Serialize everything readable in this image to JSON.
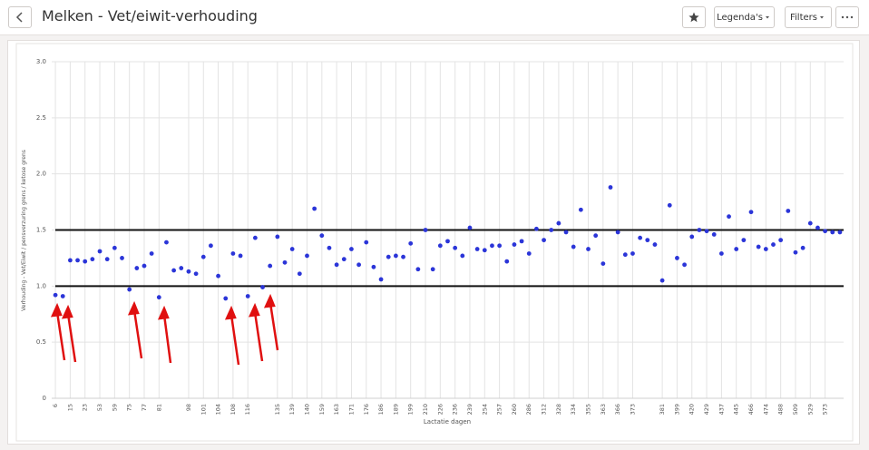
{
  "header": {
    "title": "Melken - Vet/eiwit-verhouding",
    "legend_button": "Legenda's",
    "filter_button": "Filters"
  },
  "chart_data": {
    "type": "scatter",
    "y_label": "Verhouding - Vet/Eiwit / pensverzuring grens / ketose grens",
    "x_label": "Lactatie dagen",
    "categories": [
      "6",
      null,
      "15",
      null,
      "23",
      null,
      "53",
      null,
      "59",
      null,
      "75",
      null,
      "77",
      null,
      "81",
      null,
      null,
      null,
      "98",
      null,
      "101",
      null,
      "104",
      null,
      "108",
      null,
      "116",
      null,
      null,
      null,
      "135",
      null,
      "139",
      null,
      "140",
      null,
      "159",
      null,
      "163",
      null,
      "171",
      null,
      "176",
      null,
      "186",
      null,
      "189",
      null,
      "199",
      null,
      "210",
      null,
      "226",
      null,
      "236",
      null,
      "239",
      null,
      "254",
      null,
      "257",
      null,
      "260",
      null,
      "286",
      null,
      "312",
      null,
      "328",
      null,
      "334",
      null,
      "355",
      null,
      "363",
      null,
      "366",
      null,
      "373",
      null,
      null,
      null,
      "381",
      null,
      "399",
      null,
      "420",
      null,
      "429",
      null,
      "437",
      null,
      "445",
      null,
      "466",
      null,
      "474",
      null,
      "488",
      null,
      "509",
      null,
      "529",
      null,
      "573",
      null,
      null
    ],
    "values": [
      0.92,
      0.91,
      1.23,
      1.23,
      1.22,
      1.24,
      1.31,
      1.24,
      1.34,
      1.25,
      0.97,
      1.16,
      1.18,
      1.29,
      0.9,
      1.39,
      1.14,
      1.16,
      1.13,
      1.11,
      1.26,
      1.36,
      1.09,
      0.89,
      1.29,
      1.27,
      0.91,
      1.43,
      0.99,
      1.18,
      1.44,
      1.21,
      1.33,
      1.11,
      1.27,
      1.69,
      1.45,
      1.34,
      1.19,
      1.24,
      1.33,
      1.19,
      1.39,
      1.17,
      1.06,
      1.26,
      1.27,
      1.26,
      1.38,
      1.15,
      1.5,
      1.15,
      1.36,
      1.4,
      1.34,
      1.27,
      1.52,
      1.33,
      1.32,
      1.36,
      1.36,
      1.22,
      1.37,
      1.4,
      1.29,
      1.51,
      1.41,
      1.5,
      1.56,
      1.48,
      1.35,
      1.68,
      1.33,
      1.45,
      1.2,
      1.88,
      1.48,
      1.28,
      1.29,
      1.43,
      1.41,
      1.37,
      1.05,
      1.72,
      1.25,
      1.19,
      1.44,
      1.5,
      1.49,
      1.46,
      1.29,
      1.62,
      1.33,
      1.41,
      1.66,
      1.35,
      1.33,
      1.37,
      1.41,
      1.67,
      1.3,
      1.34,
      1.56,
      1.52,
      1.49,
      1.48,
      1.48
    ],
    "color": "#2b35d8",
    "reference_lines": [
      1,
      1.5
    ],
    "reference_color": "#111111",
    "ylim": [
      0,
      3
    ],
    "yticks": [
      0,
      0.5,
      {
        "value": 1,
        "label": "1.0"
      },
      1.5,
      {
        "value": 2,
        "label": "2.0"
      },
      2.5,
      {
        "value": 3,
        "label": "3.0"
      }
    ],
    "grid": true
  }
}
